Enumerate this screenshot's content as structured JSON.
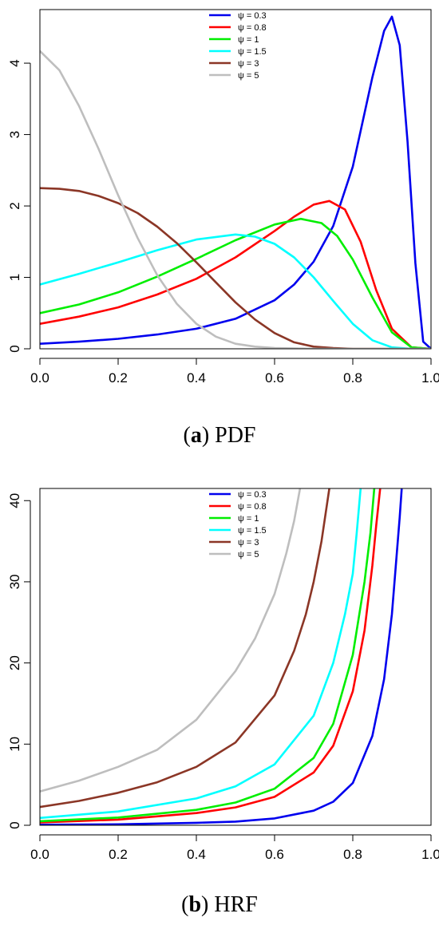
{
  "chart_data": [
    {
      "type": "line",
      "caption_letter": "a",
      "caption_text": "PDF",
      "xlim": [
        0,
        1
      ],
      "ylim": [
        0,
        4.75
      ],
      "xticks": [
        "0.0",
        "0.2",
        "0.4",
        "0.6",
        "0.8",
        "1.0"
      ],
      "yticks": [
        "0",
        "1",
        "2",
        "3",
        "4"
      ],
      "legend": {
        "position": "top-center",
        "labels": [
          "ψ = 0.3",
          "ψ = 0.8",
          "ψ = 1",
          "ψ = 1.5",
          "ψ = 3",
          "ψ = 5"
        ]
      },
      "series": [
        {
          "name": "ψ = 0.3",
          "color": "#0000ee",
          "x": [
            0,
            0.1,
            0.2,
            0.3,
            0.4,
            0.5,
            0.6,
            0.65,
            0.7,
            0.75,
            0.8,
            0.85,
            0.88,
            0.9,
            0.92,
            0.94,
            0.96,
            0.98,
            1.0
          ],
          "y": [
            0.07,
            0.1,
            0.14,
            0.2,
            0.28,
            0.42,
            0.68,
            0.9,
            1.22,
            1.72,
            2.55,
            3.8,
            4.45,
            4.65,
            4.25,
            2.9,
            1.2,
            0.1,
            0
          ]
        },
        {
          "name": "ψ = 0.8",
          "color": "#ff0000",
          "x": [
            0,
            0.1,
            0.2,
            0.3,
            0.4,
            0.5,
            0.6,
            0.65,
            0.7,
            0.74,
            0.78,
            0.82,
            0.86,
            0.9,
            0.95,
            1.0
          ],
          "y": [
            0.35,
            0.45,
            0.58,
            0.76,
            0.98,
            1.28,
            1.65,
            1.85,
            2.02,
            2.07,
            1.95,
            1.5,
            0.82,
            0.28,
            0.02,
            0
          ]
        },
        {
          "name": "ψ = 1",
          "color": "#00ee00",
          "x": [
            0,
            0.1,
            0.2,
            0.3,
            0.4,
            0.5,
            0.6,
            0.667,
            0.72,
            0.76,
            0.8,
            0.85,
            0.9,
            0.95,
            1.0
          ],
          "y": [
            0.5,
            0.62,
            0.79,
            1.01,
            1.26,
            1.52,
            1.74,
            1.82,
            1.76,
            1.58,
            1.25,
            0.72,
            0.23,
            0.02,
            0
          ]
        },
        {
          "name": "ψ = 1.5",
          "color": "#00ffff",
          "x": [
            0,
            0.1,
            0.2,
            0.3,
            0.4,
            0.5,
            0.55,
            0.6,
            0.65,
            0.7,
            0.75,
            0.8,
            0.85,
            0.9,
            0.95,
            1.0
          ],
          "y": [
            0.9,
            1.05,
            1.21,
            1.38,
            1.53,
            1.6,
            1.57,
            1.47,
            1.28,
            1.0,
            0.67,
            0.35,
            0.12,
            0.02,
            0,
            0
          ]
        },
        {
          "name": "ψ = 3",
          "color": "#8b3626",
          "x": [
            0,
            0.05,
            0.1,
            0.15,
            0.2,
            0.25,
            0.3,
            0.35,
            0.4,
            0.45,
            0.5,
            0.55,
            0.6,
            0.65,
            0.7,
            0.75,
            0.8,
            0.9,
            1.0
          ],
          "y": [
            2.25,
            2.24,
            2.21,
            2.14,
            2.04,
            1.9,
            1.71,
            1.48,
            1.21,
            0.93,
            0.65,
            0.41,
            0.22,
            0.09,
            0.03,
            0.01,
            0,
            0,
            0
          ]
        },
        {
          "name": "ψ = 5",
          "color": "#bebebe",
          "x": [
            0,
            0.05,
            0.1,
            0.15,
            0.2,
            0.25,
            0.3,
            0.35,
            0.4,
            0.45,
            0.5,
            0.55,
            0.6,
            0.7,
            0.8,
            1.0
          ],
          "y": [
            4.17,
            3.9,
            3.4,
            2.8,
            2.15,
            1.55,
            1.03,
            0.63,
            0.35,
            0.17,
            0.07,
            0.03,
            0.01,
            0,
            0,
            0
          ]
        }
      ]
    },
    {
      "type": "line",
      "caption_letter": "b",
      "caption_text": "HRF",
      "xlim": [
        0,
        1
      ],
      "ylim": [
        0,
        41.5
      ],
      "xticks": [
        "0.0",
        "0.2",
        "0.4",
        "0.6",
        "0.8",
        "1.0"
      ],
      "yticks": [
        "0",
        "10",
        "20",
        "30",
        "40"
      ],
      "legend": {
        "position": "top-center",
        "labels": [
          "ψ = 0.3",
          "ψ = 0.8",
          "ψ = 1",
          "ψ = 1.5",
          "ψ = 3",
          "ψ = 5"
        ]
      },
      "series": [
        {
          "name": "ψ = 0.3",
          "color": "#0000ee",
          "x": [
            0,
            0.2,
            0.4,
            0.5,
            0.6,
            0.7,
            0.75,
            0.8,
            0.85,
            0.88,
            0.9,
            0.91,
            0.92,
            0.925
          ],
          "y": [
            0.07,
            0.12,
            0.3,
            0.45,
            0.85,
            1.8,
            2.9,
            5.2,
            11,
            18,
            26,
            32,
            38,
            41.5
          ]
        },
        {
          "name": "ψ = 0.8",
          "color": "#ff0000",
          "x": [
            0,
            0.2,
            0.4,
            0.5,
            0.6,
            0.7,
            0.75,
            0.8,
            0.83,
            0.85,
            0.86,
            0.87
          ],
          "y": [
            0.35,
            0.7,
            1.5,
            2.2,
            3.5,
            6.5,
            9.8,
            16.5,
            24,
            32,
            37,
            41.5
          ]
        },
        {
          "name": "ψ = 1",
          "color": "#00ee00",
          "x": [
            0,
            0.2,
            0.4,
            0.5,
            0.6,
            0.7,
            0.75,
            0.8,
            0.83,
            0.845,
            0.855
          ],
          "y": [
            0.5,
            0.95,
            1.9,
            2.8,
            4.5,
            8.3,
            12.5,
            21,
            30,
            36,
            41.5
          ]
        },
        {
          "name": "ψ = 1.5",
          "color": "#00ffff",
          "x": [
            0,
            0.2,
            0.4,
            0.5,
            0.6,
            0.7,
            0.75,
            0.78,
            0.8,
            0.81,
            0.82
          ],
          "y": [
            0.9,
            1.7,
            3.3,
            4.8,
            7.5,
            13.5,
            20,
            26,
            31,
            36,
            41.5
          ]
        },
        {
          "name": "ψ = 3",
          "color": "#8b3626",
          "x": [
            0,
            0.1,
            0.2,
            0.3,
            0.4,
            0.5,
            0.6,
            0.65,
            0.68,
            0.7,
            0.72,
            0.74
          ],
          "y": [
            2.25,
            3,
            4,
            5.3,
            7.2,
            10.2,
            16,
            21.5,
            26,
            30,
            35,
            41.5
          ]
        },
        {
          "name": "ψ = 5",
          "color": "#bebebe",
          "x": [
            0,
            0.1,
            0.2,
            0.3,
            0.4,
            0.5,
            0.55,
            0.6,
            0.63,
            0.65,
            0.665
          ],
          "y": [
            4.17,
            5.5,
            7.2,
            9.3,
            13,
            19,
            23,
            28.5,
            33.5,
            37.5,
            41.5
          ]
        }
      ]
    }
  ]
}
